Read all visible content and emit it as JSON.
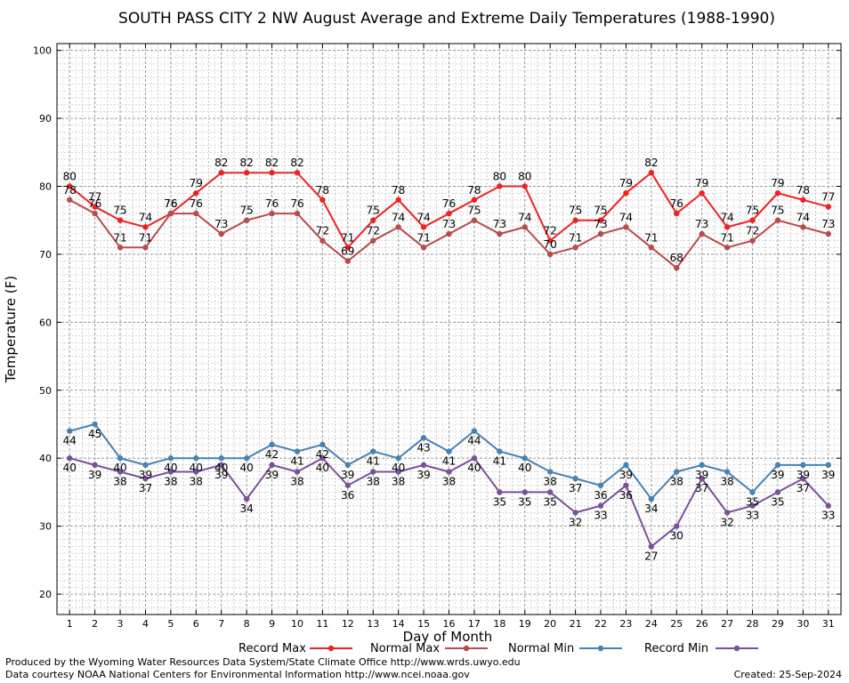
{
  "chart_data": {
    "type": "line",
    "title": "SOUTH PASS CITY 2 NW August Average and Extreme Daily Temperatures (1988-1990)",
    "xlabel": "Day of Month",
    "ylabel": "Temperature (F)",
    "ylim": [
      17,
      101
    ],
    "xlim": [
      0.5,
      31.5
    ],
    "yticks": [
      20,
      30,
      40,
      50,
      60,
      70,
      80,
      90,
      100
    ],
    "grid": true,
    "legend_position": "bottom",
    "x": [
      1,
      2,
      3,
      4,
      5,
      6,
      7,
      8,
      9,
      10,
      11,
      12,
      13,
      14,
      15,
      16,
      17,
      18,
      19,
      20,
      21,
      22,
      23,
      24,
      25,
      26,
      27,
      28,
      29,
      30,
      31
    ],
    "series": [
      {
        "name": "Record Max",
        "color": "#ee2222",
        "values": [
          80,
          77,
          75,
          74,
          76,
          79,
          82,
          82,
          82,
          82,
          78,
          71,
          75,
          78,
          74,
          76,
          78,
          80,
          80,
          72,
          75,
          75,
          79,
          82,
          76,
          79,
          74,
          75,
          79,
          78,
          77
        ]
      },
      {
        "name": "Normal Max",
        "color": "#b84b4b",
        "values": [
          78,
          76,
          71,
          71,
          76,
          76,
          73,
          75,
          76,
          76,
          72,
          69,
          72,
          74,
          71,
          73,
          75,
          73,
          74,
          70,
          71,
          73,
          74,
          71,
          68,
          73,
          71,
          72,
          75,
          74,
          73
        ]
      },
      {
        "name": "Normal Min",
        "color": "#4682b4",
        "values": [
          44,
          45,
          40,
          39,
          40,
          40,
          40,
          40,
          42,
          41,
          42,
          39,
          41,
          40,
          43,
          41,
          44,
          41,
          40,
          38,
          37,
          36,
          39,
          34,
          38,
          39,
          38,
          35,
          39,
          39,
          39
        ]
      },
      {
        "name": "Record Min",
        "color": "#7b4f9d",
        "values": [
          40,
          39,
          38,
          37,
          38,
          38,
          39,
          34,
          39,
          38,
          40,
          36,
          38,
          38,
          39,
          38,
          40,
          35,
          35,
          35,
          32,
          33,
          36,
          27,
          30,
          37,
          32,
          33,
          35,
          37,
          33
        ]
      }
    ]
  },
  "footer": {
    "produced_by": "Produced by the Wyoming Water Resources Data System/State Climate Office http://www.wrds.uwyo.edu",
    "data_courtesy": "Data courtesy NOAA National Centers for Environmental Information http://www.ncei.noaa.gov",
    "created": "Created:  25-Sep-2024"
  }
}
